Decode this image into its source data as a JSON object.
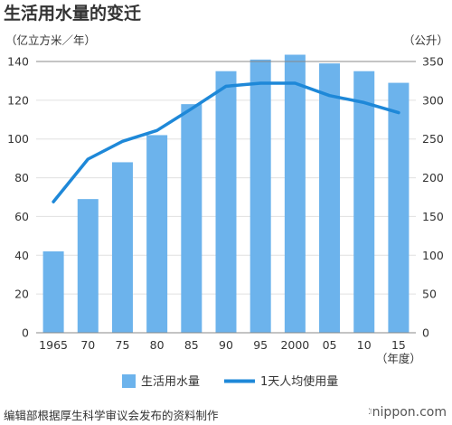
{
  "chart_data": {
    "type": "bar+line",
    "title": "生活用水量的变迁",
    "categories": [
      "1965",
      "70",
      "75",
      "80",
      "85",
      "90",
      "95",
      "2000",
      "05",
      "10",
      "15"
    ],
    "x_unit": "（年度）",
    "y_left_unit": "（亿立方米／年）",
    "y_right_unit": "（公升）",
    "y_left_range": [
      0,
      140
    ],
    "y_left_ticks": [
      "0",
      "20",
      "40",
      "60",
      "80",
      "100",
      "120",
      "140"
    ],
    "y_right_range": [
      0,
      350
    ],
    "y_right_ticks": [
      "0",
      "50",
      "100",
      "150",
      "200",
      "250",
      "300",
      "350"
    ],
    "grid": "horizontal",
    "legend_position": "bottom",
    "series": [
      {
        "name": "生活用水量",
        "type": "bar",
        "axis": "left",
        "color": "#6cb3ec",
        "values": [
          42,
          69,
          88,
          102,
          118,
          135,
          141,
          143.5,
          139,
          135,
          129
        ]
      },
      {
        "name": "1天人均使用量",
        "type": "line",
        "axis": "right",
        "color": "#1e88d8",
        "values": [
          169,
          224,
          247,
          261,
          289,
          318,
          322,
          322,
          306,
          297,
          284
        ]
      }
    ]
  },
  "source": "编辑部根据厚生科学审议会发布的资料制作",
  "brand": "nippon.com"
}
